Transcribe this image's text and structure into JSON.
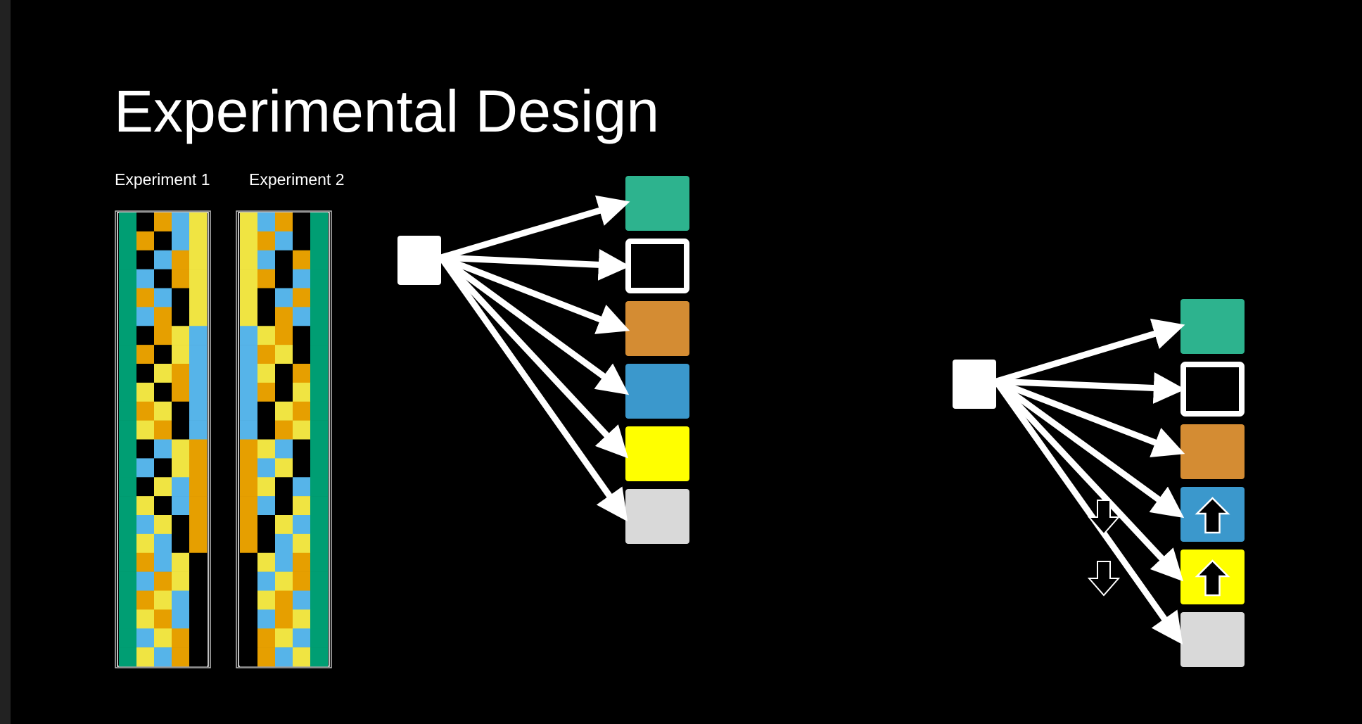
{
  "slide": {
    "title": "Experimental Design"
  },
  "experiments": [
    {
      "label": "Experiment 1"
    },
    {
      "label": "Experiment 2"
    }
  ],
  "colors": {
    "background": "#000000",
    "green": "#2db38e",
    "black": "#000000",
    "orange": "#d48c33",
    "blue": "#3b98cc",
    "yellow": "#ffff00",
    "gray": "#d9d9d9",
    "grid_green": "#009e73",
    "grid_orange": "#e69f00",
    "grid_blue": "#56b4e9",
    "grid_yellow": "#f0e442",
    "grid_black": "#000000"
  },
  "left_diagram": {
    "targets": [
      "green",
      "black",
      "orange",
      "blue",
      "yellow",
      "gray"
    ]
  },
  "right_diagram": {
    "targets": [
      "green",
      "black",
      "orange",
      "blue",
      "yellow",
      "gray"
    ],
    "up_arrow_targets": [
      "blue",
      "yellow"
    ],
    "down_arrow_icons": 2
  },
  "grid1": {
    "rows": [
      [
        "G",
        "K",
        "O",
        "B",
        "Y"
      ],
      [
        "G",
        "O",
        "K",
        "B",
        "Y"
      ],
      [
        "G",
        "K",
        "B",
        "O",
        "Y"
      ],
      [
        "G",
        "B",
        "K",
        "O",
        "Y"
      ],
      [
        "G",
        "O",
        "B",
        "K",
        "Y"
      ],
      [
        "G",
        "B",
        "O",
        "K",
        "Y"
      ],
      [
        "G",
        "K",
        "O",
        "Y",
        "B"
      ],
      [
        "G",
        "O",
        "K",
        "Y",
        "B"
      ],
      [
        "G",
        "K",
        "Y",
        "O",
        "B"
      ],
      [
        "G",
        "Y",
        "K",
        "O",
        "B"
      ],
      [
        "G",
        "O",
        "Y",
        "K",
        "B"
      ],
      [
        "G",
        "Y",
        "O",
        "K",
        "B"
      ],
      [
        "G",
        "K",
        "B",
        "Y",
        "O"
      ],
      [
        "G",
        "B",
        "K",
        "Y",
        "O"
      ],
      [
        "G",
        "K",
        "Y",
        "B",
        "O"
      ],
      [
        "G",
        "Y",
        "K",
        "B",
        "O"
      ],
      [
        "G",
        "B",
        "Y",
        "K",
        "O"
      ],
      [
        "G",
        "Y",
        "B",
        "K",
        "O"
      ],
      [
        "G",
        "O",
        "B",
        "Y",
        "K"
      ],
      [
        "G",
        "B",
        "O",
        "Y",
        "K"
      ],
      [
        "G",
        "O",
        "Y",
        "B",
        "K"
      ],
      [
        "G",
        "Y",
        "O",
        "B",
        "K"
      ],
      [
        "G",
        "B",
        "Y",
        "O",
        "K"
      ],
      [
        "G",
        "Y",
        "B",
        "O",
        "K"
      ]
    ]
  },
  "grid2": {
    "rows": [
      [
        "Y",
        "B",
        "O",
        "K",
        "G"
      ],
      [
        "Y",
        "O",
        "B",
        "K",
        "G"
      ],
      [
        "Y",
        "B",
        "K",
        "O",
        "G"
      ],
      [
        "Y",
        "O",
        "K",
        "B",
        "G"
      ],
      [
        "Y",
        "K",
        "B",
        "O",
        "G"
      ],
      [
        "Y",
        "K",
        "O",
        "B",
        "G"
      ],
      [
        "B",
        "Y",
        "O",
        "K",
        "G"
      ],
      [
        "B",
        "O",
        "Y",
        "K",
        "G"
      ],
      [
        "B",
        "Y",
        "K",
        "O",
        "G"
      ],
      [
        "B",
        "O",
        "K",
        "Y",
        "G"
      ],
      [
        "B",
        "K",
        "Y",
        "O",
        "G"
      ],
      [
        "B",
        "K",
        "O",
        "Y",
        "G"
      ],
      [
        "O",
        "Y",
        "B",
        "K",
        "G"
      ],
      [
        "O",
        "B",
        "Y",
        "K",
        "G"
      ],
      [
        "O",
        "Y",
        "K",
        "B",
        "G"
      ],
      [
        "O",
        "B",
        "K",
        "Y",
        "G"
      ],
      [
        "O",
        "K",
        "Y",
        "B",
        "G"
      ],
      [
        "O",
        "K",
        "B",
        "Y",
        "G"
      ],
      [
        "K",
        "Y",
        "B",
        "O",
        "G"
      ],
      [
        "K",
        "B",
        "Y",
        "O",
        "G"
      ],
      [
        "K",
        "Y",
        "O",
        "B",
        "G"
      ],
      [
        "K",
        "B",
        "O",
        "Y",
        "G"
      ],
      [
        "K",
        "O",
        "Y",
        "B",
        "G"
      ],
      [
        "K",
        "O",
        "B",
        "Y",
        "G"
      ]
    ]
  }
}
